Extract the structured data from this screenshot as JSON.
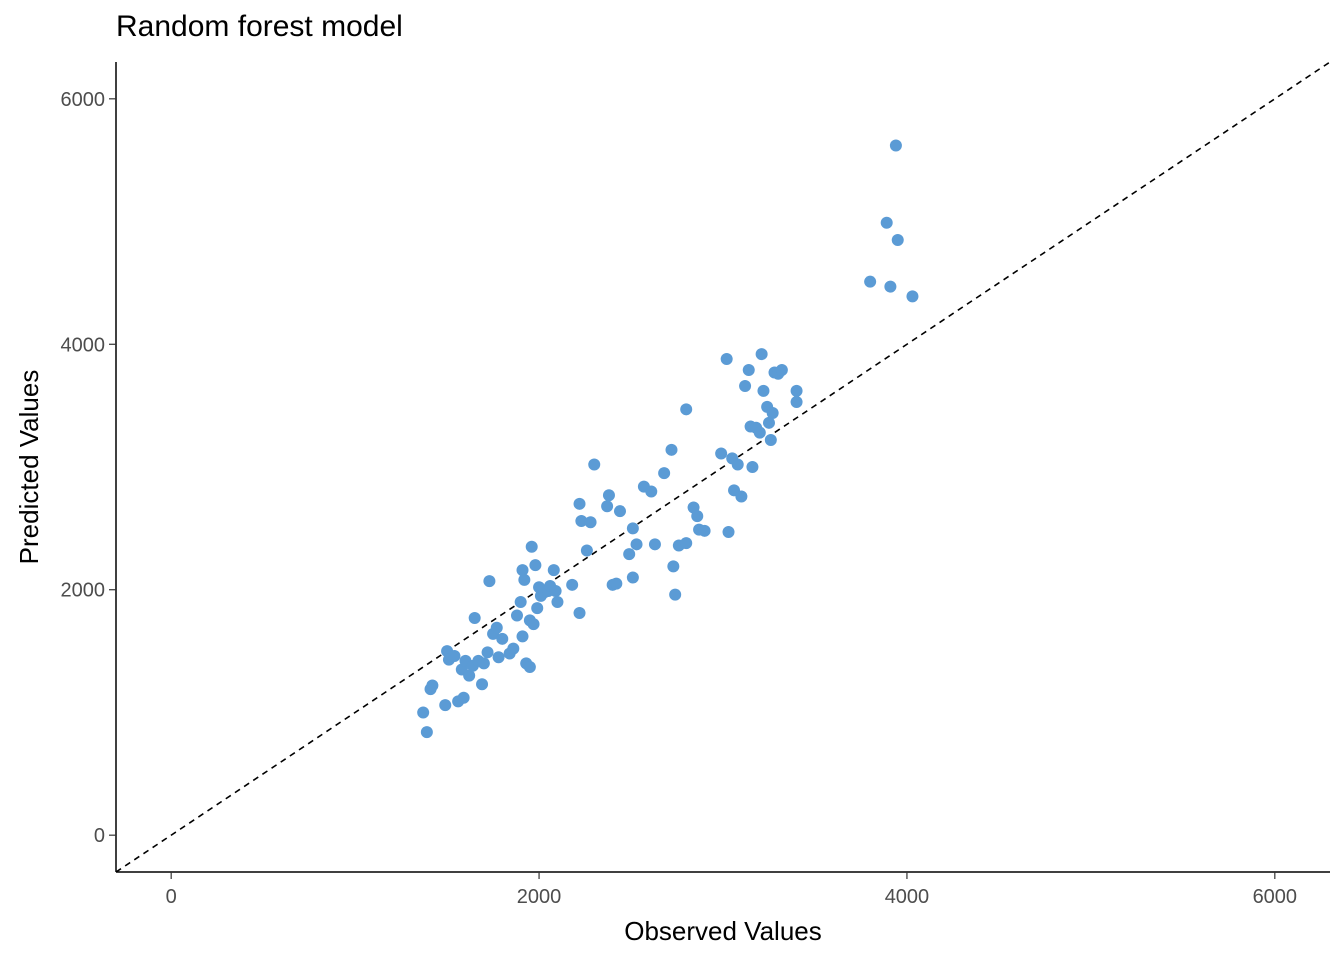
{
  "chart_data": {
    "type": "scatter",
    "title": "Random forest model",
    "xlabel": "Observed Values",
    "ylabel": "Predicted Values",
    "xlim": [
      -300,
      6300
    ],
    "ylim": [
      -300,
      6300
    ],
    "xticks": [
      0,
      2000,
      4000,
      6000
    ],
    "yticks": [
      0,
      2000,
      4000,
      6000
    ],
    "xtick_labels": [
      "0",
      "2000",
      "4000",
      "6000"
    ],
    "ytick_labels": [
      "0",
      "2000",
      "4000",
      "6000"
    ],
    "grid": false,
    "reference_line": {
      "type": "identity",
      "style": "dashed",
      "color": "#000000"
    },
    "point_color": "#5B9BD5",
    "points": [
      [
        1370,
        1000
      ],
      [
        1390,
        840
      ],
      [
        1410,
        1190
      ],
      [
        1420,
        1220
      ],
      [
        1490,
        1060
      ],
      [
        1500,
        1500
      ],
      [
        1510,
        1430
      ],
      [
        1540,
        1460
      ],
      [
        1560,
        1090
      ],
      [
        1590,
        1120
      ],
      [
        1580,
        1350
      ],
      [
        1600,
        1420
      ],
      [
        1620,
        1300
      ],
      [
        1640,
        1380
      ],
      [
        1650,
        1770
      ],
      [
        1670,
        1420
      ],
      [
        1690,
        1230
      ],
      [
        1700,
        1400
      ],
      [
        1720,
        1490
      ],
      [
        1730,
        2070
      ],
      [
        1750,
        1640
      ],
      [
        1770,
        1690
      ],
      [
        1780,
        1450
      ],
      [
        1800,
        1600
      ],
      [
        1840,
        1480
      ],
      [
        1860,
        1520
      ],
      [
        1880,
        1790
      ],
      [
        1900,
        1900
      ],
      [
        1910,
        2160
      ],
      [
        1910,
        1620
      ],
      [
        1920,
        2080
      ],
      [
        1930,
        1400
      ],
      [
        1950,
        1370
      ],
      [
        1950,
        1750
      ],
      [
        1960,
        2350
      ],
      [
        1970,
        1720
      ],
      [
        1980,
        2200
      ],
      [
        1990,
        1850
      ],
      [
        2000,
        2020
      ],
      [
        2010,
        1950
      ],
      [
        2030,
        1980
      ],
      [
        2050,
        1990
      ],
      [
        2060,
        2030
      ],
      [
        2080,
        2160
      ],
      [
        2090,
        1990
      ],
      [
        2100,
        1900
      ],
      [
        2180,
        2040
      ],
      [
        2220,
        1810
      ],
      [
        2220,
        2700
      ],
      [
        2230,
        2560
      ],
      [
        2260,
        2320
      ],
      [
        2280,
        2550
      ],
      [
        2300,
        3020
      ],
      [
        2370,
        2680
      ],
      [
        2380,
        2770
      ],
      [
        2400,
        2040
      ],
      [
        2420,
        2050
      ],
      [
        2440,
        2640
      ],
      [
        2490,
        2290
      ],
      [
        2510,
        2500
      ],
      [
        2510,
        2100
      ],
      [
        2530,
        2370
      ],
      [
        2570,
        2840
      ],
      [
        2610,
        2800
      ],
      [
        2630,
        2370
      ],
      [
        2680,
        2950
      ],
      [
        2720,
        3140
      ],
      [
        2730,
        2190
      ],
      [
        2740,
        1960
      ],
      [
        2760,
        2360
      ],
      [
        2800,
        2380
      ],
      [
        2800,
        3470
      ],
      [
        2840,
        2670
      ],
      [
        2860,
        2600
      ],
      [
        2870,
        2490
      ],
      [
        2900,
        2480
      ],
      [
        2990,
        3110
      ],
      [
        3020,
        3880
      ],
      [
        3030,
        2470
      ],
      [
        3050,
        3070
      ],
      [
        3060,
        2810
      ],
      [
        3080,
        3020
      ],
      [
        3100,
        2760
      ],
      [
        3120,
        3660
      ],
      [
        3140,
        3790
      ],
      [
        3150,
        3330
      ],
      [
        3160,
        3000
      ],
      [
        3180,
        3320
      ],
      [
        3200,
        3280
      ],
      [
        3210,
        3920
      ],
      [
        3220,
        3620
      ],
      [
        3240,
        3490
      ],
      [
        3250,
        3360
      ],
      [
        3260,
        3220
      ],
      [
        3270,
        3440
      ],
      [
        3280,
        3770
      ],
      [
        3300,
        3760
      ],
      [
        3320,
        3790
      ],
      [
        3400,
        3530
      ],
      [
        3400,
        3620
      ],
      [
        3800,
        4510
      ],
      [
        3890,
        4990
      ],
      [
        3910,
        4470
      ],
      [
        3940,
        5620
      ],
      [
        3950,
        4850
      ],
      [
        4030,
        4390
      ]
    ]
  }
}
